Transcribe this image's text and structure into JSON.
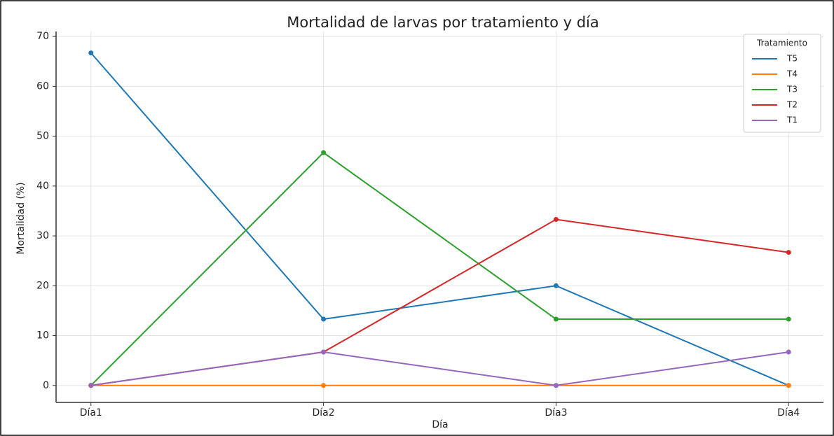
{
  "chart_data": {
    "type": "line",
    "title": "Mortalidad de larvas por tratamiento y día",
    "x_label": "Día",
    "y_label": "Mortalidad (%)",
    "categories": [
      "Día1",
      "Día2",
      "Día3",
      "Día4"
    ],
    "series": [
      {
        "name": "T5",
        "color": "#1f77b4",
        "values": [
          66.7,
          13.3,
          20,
          0
        ]
      },
      {
        "name": "T4",
        "color": "#ff7f0e",
        "values": [
          0,
          0,
          0,
          0
        ]
      },
      {
        "name": "T3",
        "color": "#2ca02c",
        "values": [
          0,
          46.7,
          13.3,
          13.3
        ]
      },
      {
        "name": "T2",
        "color": "#d62728",
        "values": [
          0,
          6.7,
          33.3,
          26.7
        ]
      },
      {
        "name": "T1",
        "color": "#9467bd",
        "values": [
          0,
          6.7,
          0,
          6.7
        ]
      }
    ],
    "legend_title": "Tratamiento",
    "legend": "upper right",
    "ylim": [
      -3.4,
      71
    ],
    "yticks": [
      0,
      10,
      20,
      30,
      40,
      50,
      60,
      70
    ],
    "grid": true
  }
}
